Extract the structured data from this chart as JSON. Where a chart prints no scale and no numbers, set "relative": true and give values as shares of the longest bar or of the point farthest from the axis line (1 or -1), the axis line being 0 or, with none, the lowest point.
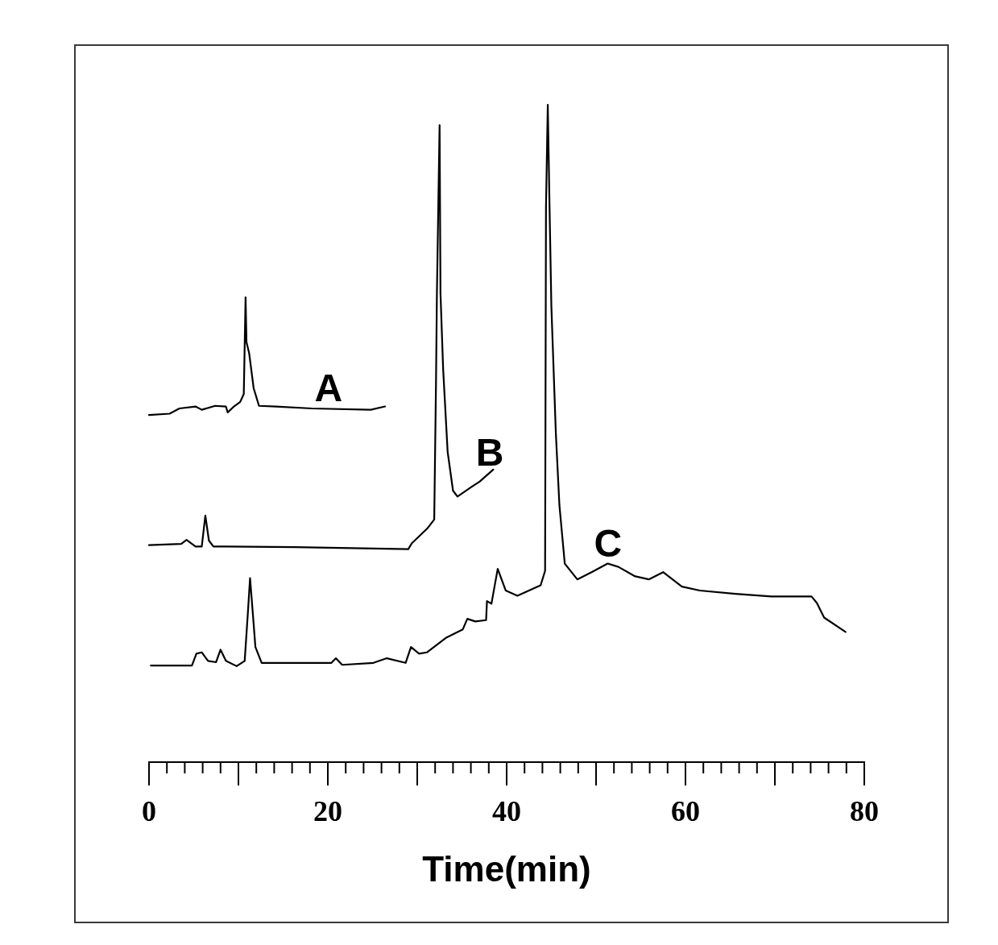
{
  "chart_data": {
    "type": "line",
    "xlabel": "Time(min)",
    "relative": true,
    "marker": "none",
    "xlim": [
      0,
      80
    ],
    "xticks": [
      0,
      {
        "value": 2,
        "label": null
      },
      {
        "value": 4,
        "label": null
      },
      {
        "value": 6,
        "label": null
      },
      {
        "value": 8,
        "label": null
      },
      {
        "value": 10,
        "label": null
      },
      {
        "value": 12,
        "label": null
      },
      {
        "value": 14,
        "label": null
      },
      {
        "value": 16,
        "label": null
      },
      {
        "value": 18,
        "label": null
      },
      20,
      {
        "value": 22,
        "label": null
      },
      {
        "value": 24,
        "label": null
      },
      {
        "value": 26,
        "label": null
      },
      {
        "value": 28,
        "label": null
      },
      {
        "value": 30,
        "label": null
      },
      {
        "value": 32,
        "label": null
      },
      {
        "value": 34,
        "label": null
      },
      {
        "value": 36,
        "label": null
      },
      {
        "value": 38,
        "label": null
      },
      40,
      {
        "value": 42,
        "label": null
      },
      {
        "value": 44,
        "label": null
      },
      {
        "value": 46,
        "label": null
      },
      {
        "value": 48,
        "label": null
      },
      {
        "value": 50,
        "label": null
      },
      {
        "value": 52,
        "label": null
      },
      {
        "value": 54,
        "label": null
      },
      {
        "value": 56,
        "label": null
      },
      {
        "value": 58,
        "label": null
      },
      60,
      {
        "value": 62,
        "label": null
      },
      {
        "value": 64,
        "label": null
      },
      {
        "value": 66,
        "label": null
      },
      {
        "value": 68,
        "label": null
      },
      {
        "value": 70,
        "label": null
      },
      {
        "value": 72,
        "label": null
      },
      {
        "value": 74,
        "label": null
      },
      {
        "value": 76,
        "label": null
      },
      {
        "value": 78,
        "label": null
      },
      80
    ],
    "series": [
      {
        "name": "A",
        "color": "#000000",
        "x": [
          0,
          2.3,
          3.4,
          5.2,
          5.9,
          7.4,
          8.6,
          8.8,
          9.5,
          10.2,
          10.6,
          10.8,
          10.9,
          11.2,
          11.7,
          12.3,
          14.2,
          18.2,
          24.8,
          26.4
        ],
        "values": [
          0.528,
          0.53,
          0.538,
          0.541,
          0.536,
          0.542,
          0.541,
          0.532,
          0.541,
          0.548,
          0.56,
          0.707,
          0.639,
          0.622,
          0.569,
          0.542,
          0.541,
          0.538,
          0.536,
          0.541
        ]
      },
      {
        "name": "B",
        "color": "#000000",
        "x": [
          0,
          3.6,
          4.2,
          5.2,
          5.9,
          6.3,
          6.7,
          7.2,
          8.5,
          16.3,
          29.0,
          29.4,
          31.1,
          31.9,
          32.1,
          32.2,
          32.5,
          32.6,
          32.9,
          33.4,
          34.0,
          34.5,
          36.0,
          37.0,
          38.5
        ],
        "values": [
          0.33,
          0.332,
          0.338,
          0.328,
          0.328,
          0.375,
          0.337,
          0.328,
          0.328,
          0.327,
          0.324,
          0.333,
          0.355,
          0.369,
          0.579,
          0.713,
          0.969,
          0.713,
          0.597,
          0.472,
          0.413,
          0.404,
          0.418,
          0.427,
          0.445
        ]
      },
      {
        "name": "C",
        "color": "#000000",
        "x": [
          0.2,
          4.8,
          5.3,
          5.9,
          6.6,
          7.5,
          8.0,
          8.6,
          9.8,
          10.7,
          11.1,
          11.3,
          11.6,
          11.9,
          12.6,
          20.4,
          20.9,
          21.6,
          25.1,
          26.6,
          28.7,
          29.3,
          30.2,
          31.1,
          33.2,
          35.1,
          35.6,
          36.5,
          37.7,
          37.8,
          38.3,
          39.0,
          39.9,
          41.2,
          43.8,
          44.3,
          44.4,
          44.6,
          44.8,
          45.0,
          45.5,
          45.9,
          46.5,
          47.9,
          49.5,
          51.3,
          52.5,
          54.3,
          55.9,
          57.5,
          59.6,
          61.6,
          65.6,
          69.6,
          74.1,
          74.7,
          75.5,
          77.9
        ],
        "values": [
          0.147,
          0.147,
          0.165,
          0.167,
          0.154,
          0.152,
          0.171,
          0.154,
          0.146,
          0.154,
          0.236,
          0.28,
          0.228,
          0.175,
          0.151,
          0.151,
          0.158,
          0.148,
          0.151,
          0.158,
          0.151,
          0.175,
          0.165,
          0.167,
          0.189,
          0.202,
          0.218,
          0.214,
          0.216,
          0.245,
          0.241,
          0.294,
          0.261,
          0.253,
          0.269,
          0.291,
          0.843,
          1.0,
          0.843,
          0.694,
          0.501,
          0.391,
          0.302,
          0.278,
          0.289,
          0.302,
          0.297,
          0.283,
          0.278,
          0.289,
          0.267,
          0.261,
          0.256,
          0.252,
          0.252,
          0.242,
          0.22,
          0.198
        ]
      }
    ]
  }
}
